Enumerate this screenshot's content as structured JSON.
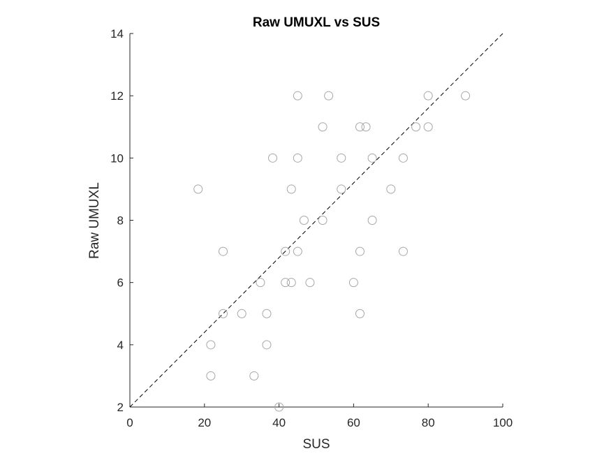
{
  "chart_data": {
    "type": "scatter",
    "title": "Raw UMUXL vs SUS",
    "xlabel": "SUS",
    "ylabel": "Raw UMUXL",
    "xlim": [
      0,
      100
    ],
    "ylim": [
      2,
      14
    ],
    "xticks": [
      "0",
      "20",
      "40",
      "60",
      "80",
      "100"
    ],
    "yticks": [
      "2",
      "4",
      "6",
      "8",
      "10",
      "12",
      "14"
    ],
    "grid": false,
    "reference_line": {
      "style": "dashed",
      "from": [
        0,
        2
      ],
      "to": [
        100,
        14
      ]
    },
    "marker_color": "#a6a6a6",
    "axis_color": "#262626",
    "points": [
      {
        "x": 18.3,
        "y": 9
      },
      {
        "x": 21.7,
        "y": 4
      },
      {
        "x": 21.7,
        "y": 3
      },
      {
        "x": 25,
        "y": 7
      },
      {
        "x": 25,
        "y": 5
      },
      {
        "x": 30,
        "y": 5
      },
      {
        "x": 33.3,
        "y": 3
      },
      {
        "x": 35,
        "y": 6
      },
      {
        "x": 36.7,
        "y": 5
      },
      {
        "x": 36.7,
        "y": 4
      },
      {
        "x": 38.3,
        "y": 10
      },
      {
        "x": 40,
        "y": 2
      },
      {
        "x": 41.7,
        "y": 7
      },
      {
        "x": 41.7,
        "y": 6
      },
      {
        "x": 43.3,
        "y": 9
      },
      {
        "x": 43.3,
        "y": 6
      },
      {
        "x": 45,
        "y": 12
      },
      {
        "x": 45,
        "y": 10
      },
      {
        "x": 45,
        "y": 7
      },
      {
        "x": 46.7,
        "y": 8
      },
      {
        "x": 48.3,
        "y": 6
      },
      {
        "x": 51.7,
        "y": 11
      },
      {
        "x": 51.7,
        "y": 8
      },
      {
        "x": 53.3,
        "y": 12
      },
      {
        "x": 56.7,
        "y": 10
      },
      {
        "x": 56.7,
        "y": 9
      },
      {
        "x": 60,
        "y": 6
      },
      {
        "x": 61.7,
        "y": 11
      },
      {
        "x": 61.7,
        "y": 7
      },
      {
        "x": 61.7,
        "y": 5
      },
      {
        "x": 63.3,
        "y": 11
      },
      {
        "x": 65,
        "y": 10
      },
      {
        "x": 65,
        "y": 8
      },
      {
        "x": 70,
        "y": 9
      },
      {
        "x": 73.3,
        "y": 10
      },
      {
        "x": 73.3,
        "y": 7
      },
      {
        "x": 76.7,
        "y": 11
      },
      {
        "x": 80,
        "y": 12
      },
      {
        "x": 80,
        "y": 11
      },
      {
        "x": 90,
        "y": 12
      }
    ]
  }
}
